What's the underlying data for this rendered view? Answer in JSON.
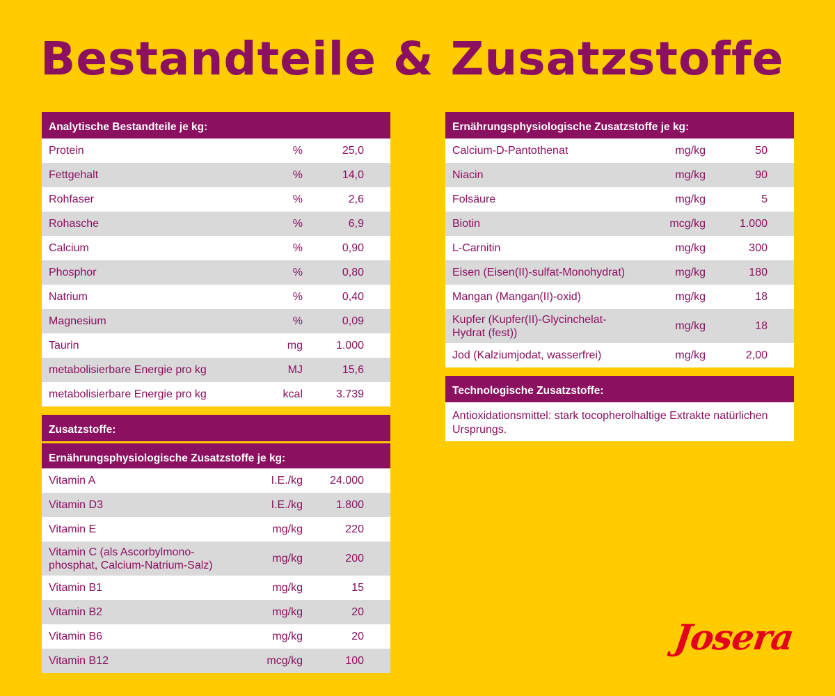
{
  "title": "Bestandteile & Zusatzstoffe",
  "analytic": {
    "header": "Analytische Bestandteile je kg:",
    "rows": [
      {
        "name": "Protein",
        "unit": "%",
        "value": "25,0"
      },
      {
        "name": "Fettgehalt",
        "unit": "%",
        "value": "14,0"
      },
      {
        "name": "Rohfaser",
        "unit": "%",
        "value": "2,6"
      },
      {
        "name": "Rohasche",
        "unit": "%",
        "value": "6,9"
      },
      {
        "name": "Calcium",
        "unit": "%",
        "value": "0,90"
      },
      {
        "name": "Phosphor",
        "unit": "%",
        "value": "0,80"
      },
      {
        "name": "Natrium",
        "unit": "%",
        "value": "0,40"
      },
      {
        "name": "Magnesium",
        "unit": "%",
        "value": "0,09"
      },
      {
        "name": "Taurin",
        "unit": "mg",
        "value": "1.000"
      },
      {
        "name": "metabolisierbare Energie pro kg",
        "unit": "MJ",
        "value": "15,6"
      },
      {
        "name": "metabolisierbare Energie pro kg",
        "unit": "kcal",
        "value": "3.739"
      }
    ]
  },
  "additives": {
    "header": "Zusatzstoffe:",
    "sub_header": "Ernährungsphysiologische Zusatzstoffe je kg:",
    "rows": [
      {
        "name": "Vitamin A",
        "unit": "I.E./kg",
        "value": "24.000"
      },
      {
        "name": "Vitamin D3",
        "unit": "I.E./kg",
        "value": "1.800"
      },
      {
        "name": "Vitamin E",
        "unit": "mg/kg",
        "value": "220"
      },
      {
        "name": "Vitamin C (als Ascorbylmono-\nphosphat, Calcium-Natrium-Salz)",
        "unit": "mg/kg",
        "value": "200",
        "tall": true
      },
      {
        "name": "Vitamin B1",
        "unit": "mg/kg",
        "value": "15"
      },
      {
        "name": "Vitamin B2",
        "unit": "mg/kg",
        "value": "20"
      },
      {
        "name": "Vitamin B6",
        "unit": "mg/kg",
        "value": "20"
      },
      {
        "name": "Vitamin B12",
        "unit": "mcg/kg",
        "value": "100"
      }
    ]
  },
  "nutritional": {
    "header": "Ernährungsphysiologische Zusatzstoffe je kg:",
    "rows": [
      {
        "name": "Calcium-D-Pantothenat",
        "unit": "mg/kg",
        "value": "50"
      },
      {
        "name": "Niacin",
        "unit": "mg/kg",
        "value": "90"
      },
      {
        "name": "Folsäure",
        "unit": "mg/kg",
        "value": "5"
      },
      {
        "name": "Biotin",
        "unit": "mcg/kg",
        "value": "1.000"
      },
      {
        "name": "L-Carnitin",
        "unit": "mg/kg",
        "value": "300"
      },
      {
        "name": "Eisen (Eisen(II)-sulfat-Monohydrat)",
        "unit": "mg/kg",
        "value": "180"
      },
      {
        "name": "Mangan (Mangan(II)-oxid)",
        "unit": "mg/kg",
        "value": "18"
      },
      {
        "name": "Kupfer (Kupfer(II)-Glycinchelat-\nHydrat (fest))",
        "unit": "mg/kg",
        "value": "18",
        "tall": true
      },
      {
        "name": "Jod (Kalziumjodat, wasserfrei)",
        "unit": "mg/kg",
        "value": "2,00"
      }
    ]
  },
  "technological": {
    "header": "Technologische Zusatzstoffe:",
    "text": "Antioxidationsmittel: stark tocopherolhaltige Extrakte natürlichen Ursprungs."
  },
  "logo": {
    "text": "Josera",
    "color": "#e3001b"
  },
  "colors": {
    "background": "#fecc00",
    "accent": "#8b1060",
    "row_alt": "#d9d9d9"
  }
}
